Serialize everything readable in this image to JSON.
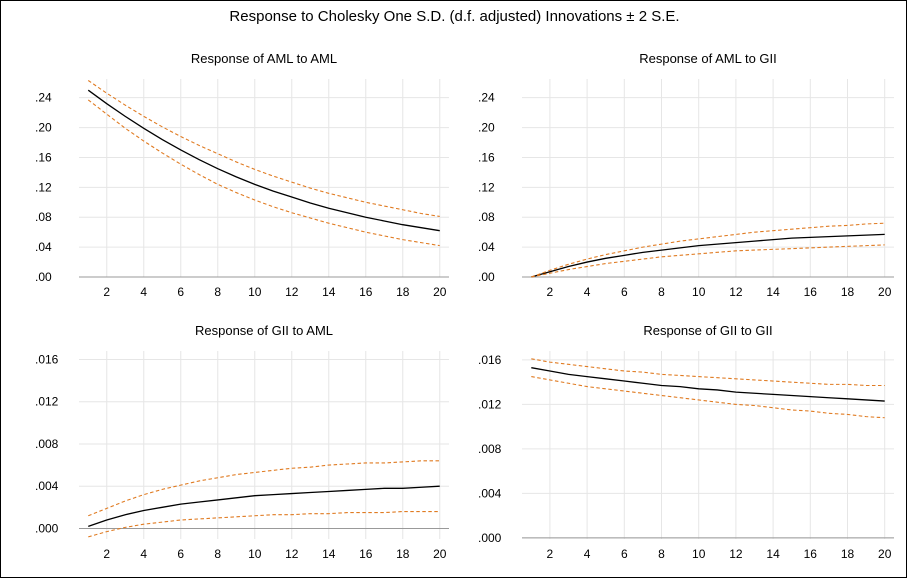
{
  "title": "Response to Cholesky One S.D. (d.f. adjusted) Innovations ± 2 S.E.",
  "colors": {
    "response": "#000000",
    "bands": "#E07B22",
    "grid": "#e6e6e6",
    "axis": "#999999"
  },
  "chart_data": [
    {
      "type": "line",
      "title": "Response of AML to AML",
      "x": [
        1,
        2,
        3,
        4,
        5,
        6,
        7,
        8,
        9,
        10,
        11,
        12,
        13,
        14,
        15,
        16,
        17,
        18,
        19,
        20
      ],
      "xticks": [
        2,
        4,
        6,
        8,
        10,
        12,
        14,
        16,
        18,
        20
      ],
      "xlim": [
        0.5,
        20.5
      ],
      "ylim": [
        0.0,
        0.265
      ],
      "yticks": [
        0.0,
        0.04,
        0.08,
        0.12,
        0.16,
        0.2,
        0.24
      ],
      "ytick_labels": [
        ".00",
        ".04",
        ".08",
        ".12",
        ".16",
        ".20",
        ".24"
      ],
      "series": [
        {
          "role": "response",
          "values": [
            0.25,
            0.232,
            0.215,
            0.199,
            0.184,
            0.17,
            0.157,
            0.145,
            0.134,
            0.124,
            0.115,
            0.107,
            0.099,
            0.092,
            0.086,
            0.08,
            0.075,
            0.07,
            0.066,
            0.062
          ]
        },
        {
          "role": "upper",
          "values": [
            0.263,
            0.246,
            0.23,
            0.215,
            0.201,
            0.188,
            0.176,
            0.165,
            0.154,
            0.144,
            0.135,
            0.127,
            0.119,
            0.112,
            0.106,
            0.1,
            0.095,
            0.09,
            0.085,
            0.081
          ]
        },
        {
          "role": "lower",
          "values": [
            0.237,
            0.218,
            0.199,
            0.182,
            0.166,
            0.151,
            0.137,
            0.124,
            0.113,
            0.103,
            0.094,
            0.086,
            0.079,
            0.072,
            0.066,
            0.06,
            0.055,
            0.05,
            0.046,
            0.042
          ]
        }
      ]
    },
    {
      "type": "line",
      "title": "Response of AML to GII",
      "x": [
        1,
        2,
        3,
        4,
        5,
        6,
        7,
        8,
        9,
        10,
        11,
        12,
        13,
        14,
        15,
        16,
        17,
        18,
        19,
        20
      ],
      "xticks": [
        2,
        4,
        6,
        8,
        10,
        12,
        14,
        16,
        18,
        20
      ],
      "xlim": [
        0.5,
        20.5
      ],
      "ylim": [
        0.0,
        0.265
      ],
      "yticks": [
        0.0,
        0.04,
        0.08,
        0.12,
        0.16,
        0.2,
        0.24
      ],
      "ytick_labels": [
        ".00",
        ".04",
        ".08",
        ".12",
        ".16",
        ".20",
        ".24"
      ],
      "series": [
        {
          "role": "response",
          "values": [
            0.0,
            0.007,
            0.014,
            0.02,
            0.025,
            0.029,
            0.033,
            0.036,
            0.039,
            0.042,
            0.044,
            0.046,
            0.048,
            0.05,
            0.052,
            0.053,
            0.054,
            0.055,
            0.056,
            0.057
          ]
        },
        {
          "role": "upper",
          "values": [
            0.0,
            0.009,
            0.017,
            0.024,
            0.03,
            0.035,
            0.04,
            0.044,
            0.048,
            0.051,
            0.054,
            0.057,
            0.06,
            0.062,
            0.064,
            0.066,
            0.068,
            0.069,
            0.071,
            0.072
          ]
        },
        {
          "role": "lower",
          "values": [
            0.0,
            0.005,
            0.01,
            0.014,
            0.018,
            0.021,
            0.024,
            0.027,
            0.029,
            0.031,
            0.033,
            0.035,
            0.036,
            0.037,
            0.038,
            0.039,
            0.04,
            0.041,
            0.042,
            0.043
          ]
        }
      ]
    },
    {
      "type": "line",
      "title": "Response of GII to AML",
      "x": [
        1,
        2,
        3,
        4,
        5,
        6,
        7,
        8,
        9,
        10,
        11,
        12,
        13,
        14,
        15,
        16,
        17,
        18,
        19,
        20
      ],
      "xticks": [
        2,
        4,
        6,
        8,
        10,
        12,
        14,
        16,
        18,
        20
      ],
      "xlim": [
        0.5,
        20.5
      ],
      "ylim": [
        -0.001,
        0.0168
      ],
      "yticks": [
        0.0,
        0.004,
        0.008,
        0.012,
        0.016
      ],
      "ytick_labels": [
        ".000",
        ".004",
        ".008",
        ".012",
        ".016"
      ],
      "series": [
        {
          "role": "response",
          "values": [
            0.0002,
            0.0008,
            0.0013,
            0.0017,
            0.002,
            0.0023,
            0.0025,
            0.0027,
            0.0029,
            0.0031,
            0.0032,
            0.0033,
            0.0034,
            0.0035,
            0.0036,
            0.0037,
            0.0038,
            0.0038,
            0.0039,
            0.004
          ]
        },
        {
          "role": "upper",
          "values": [
            0.0012,
            0.0019,
            0.0026,
            0.0032,
            0.0037,
            0.0041,
            0.0045,
            0.0048,
            0.0051,
            0.0053,
            0.0055,
            0.0057,
            0.0058,
            0.006,
            0.0061,
            0.0062,
            0.0062,
            0.0063,
            0.0064,
            0.0064
          ]
        },
        {
          "role": "lower",
          "values": [
            -0.0008,
            -0.0003,
            0.0001,
            0.0004,
            0.0006,
            0.0008,
            0.0009,
            0.001,
            0.0011,
            0.0012,
            0.0013,
            0.0013,
            0.0014,
            0.0014,
            0.0015,
            0.0015,
            0.0015,
            0.0016,
            0.0016,
            0.0016
          ]
        }
      ]
    },
    {
      "type": "line",
      "title": "Response of GII to GII",
      "x": [
        1,
        2,
        3,
        4,
        5,
        6,
        7,
        8,
        9,
        10,
        11,
        12,
        13,
        14,
        15,
        16,
        17,
        18,
        19,
        20
      ],
      "xticks": [
        2,
        4,
        6,
        8,
        10,
        12,
        14,
        16,
        18,
        20
      ],
      "xlim": [
        0.5,
        20.5
      ],
      "ylim": [
        -0.0001,
        0.0168
      ],
      "yticks": [
        0.0,
        0.004,
        0.008,
        0.012,
        0.016
      ],
      "ytick_labels": [
        ".000",
        ".004",
        ".008",
        ".012",
        ".016"
      ],
      "series": [
        {
          "role": "response",
          "values": [
            0.0153,
            0.015,
            0.0147,
            0.0145,
            0.0143,
            0.0141,
            0.0139,
            0.0137,
            0.0136,
            0.0134,
            0.0133,
            0.0131,
            0.013,
            0.0129,
            0.0128,
            0.0127,
            0.0126,
            0.0125,
            0.0124,
            0.0123
          ]
        },
        {
          "role": "upper",
          "values": [
            0.0161,
            0.0158,
            0.0156,
            0.0154,
            0.0152,
            0.015,
            0.0149,
            0.0147,
            0.0146,
            0.0145,
            0.0144,
            0.0143,
            0.0142,
            0.0141,
            0.014,
            0.0139,
            0.0138,
            0.0138,
            0.0137,
            0.0137
          ]
        },
        {
          "role": "lower",
          "values": [
            0.0145,
            0.0142,
            0.0139,
            0.0136,
            0.0134,
            0.0132,
            0.013,
            0.0128,
            0.0126,
            0.0124,
            0.0122,
            0.012,
            0.0119,
            0.0117,
            0.0115,
            0.0114,
            0.0112,
            0.0111,
            0.0109,
            0.0108
          ]
        }
      ]
    }
  ]
}
